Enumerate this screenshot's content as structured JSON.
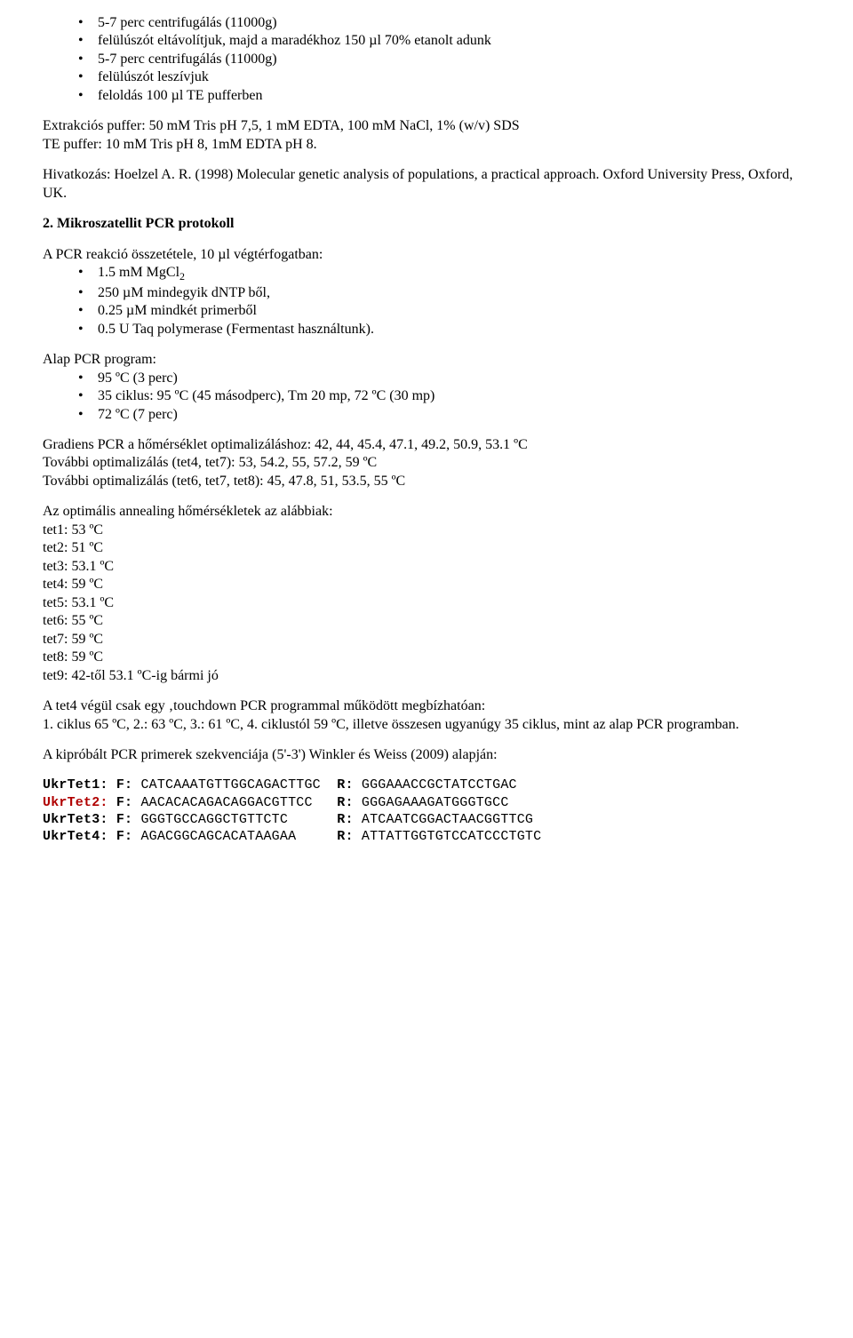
{
  "topList": {
    "items": [
      "5-7 perc centrifugálás (11000g)",
      "felülúszót eltávolítjuk, majd a maradékhoz 150 µl 70% etanolt adunk",
      "5-7 perc centrifugálás (11000g)",
      "felülúszót leszívjuk",
      "feloldás 100 µl TE pufferben"
    ]
  },
  "extractionBuffer": {
    "line1": "Extrakciós puffer: 50 mM Tris pH 7,5, 1 mM EDTA, 100 mM NaCl, 1% (w/v) SDS",
    "line2": "TE puffer: 10 mM Tris pH 8, 1mM EDTA pH 8."
  },
  "reference": "Hivatkozás: Hoelzel A. R. (1998) Molecular genetic analysis of populations, a practical approach. Oxford University Press, Oxford, UK.",
  "section2": {
    "title": "2. Mikroszatellit PCR protokoll",
    "pcrIntro": "A PCR reakció összetétele, 10 µl végtérfogatban:",
    "pcrItems": {
      "i0_a": "1.5 mM MgCl",
      "i0_sub": "2",
      "i1": "250 µM mindegyik dNTP ből,",
      "i2": "0.25 µM mindkét primerből",
      "i3": "0.5 U Taq polymerase (Fermentast használtunk)."
    },
    "programIntro": "Alap PCR program:",
    "programItems": [
      "95 ºC (3 perc)",
      "35 ciklus:  95 ºC (45 másodperc), Tm 20 mp, 72 ºC (30 mp)",
      "72 ºC (7 perc)"
    ]
  },
  "gradient": {
    "l1": "Gradiens PCR a hőmérséklet optimalizáláshoz: 42, 44, 45.4, 47.1, 49.2, 50.9, 53.1 ºC",
    "l2": "További optimalizálás (tet4, tet7): 53, 54.2, 55, 57.2, 59 ºC",
    "l3": "További optimalizálás (tet6, tet7, tet8): 45, 47.8, 51, 53.5, 55 ºC"
  },
  "annealing": {
    "intro": "Az optimális annealing hőmérsékletek az alábbiak:",
    "lines": [
      "tet1: 53 ºC",
      "tet2: 51 ºC",
      "tet3: 53.1 ºC",
      "tet4: 59 ºC",
      "tet5: 53.1 ºC",
      "tet6: 55 ºC",
      "tet7: 59 ºC",
      "tet8: 59 ºC",
      "tet9: 42-től 53.1 ºC-ig bármi jó"
    ]
  },
  "touchdown": {
    "l1": "A tet4 végül csak egy ‚touchdown PCR programmal működött megbízhatóan:",
    "l2": "1. ciklus 65 ºC, 2.: 63 ºC, 3.:  61 ºC, 4. ciklustól 59 ºC, illetve összesen ugyanúgy 35 ciklus, mint az alap PCR programban."
  },
  "primersIntro": "A kipróbált PCR primerek szekvenciája (5'-3') Winkler és Weiss (2009) alapján:",
  "primers": {
    "rows": [
      {
        "name": "UkrTet1:",
        "f": "CATCAAATGTTGGCAGACTTGC",
        "r": "GGGAAACCGCTATCCTGAC",
        "red": false
      },
      {
        "name": "UkrTet2:",
        "f": "AACACACAGACAGGACGTTCC",
        "r": "GGGAGAAAGATGGGTGCC",
        "red": true
      },
      {
        "name": "UkrTet3:",
        "f": "GGGTGCCAGGCTGTTCTC",
        "r": "ATCAATCGGACTAACGGTTCG",
        "red": false
      },
      {
        "name": "UkrTet4:",
        "f": "AGACGGCAGCACATAAGAA",
        "r": "ATTATTGGTGTCCATCCCTGTC",
        "red": false
      }
    ],
    "labels": {
      "F": "F:",
      "R": "R:"
    }
  }
}
